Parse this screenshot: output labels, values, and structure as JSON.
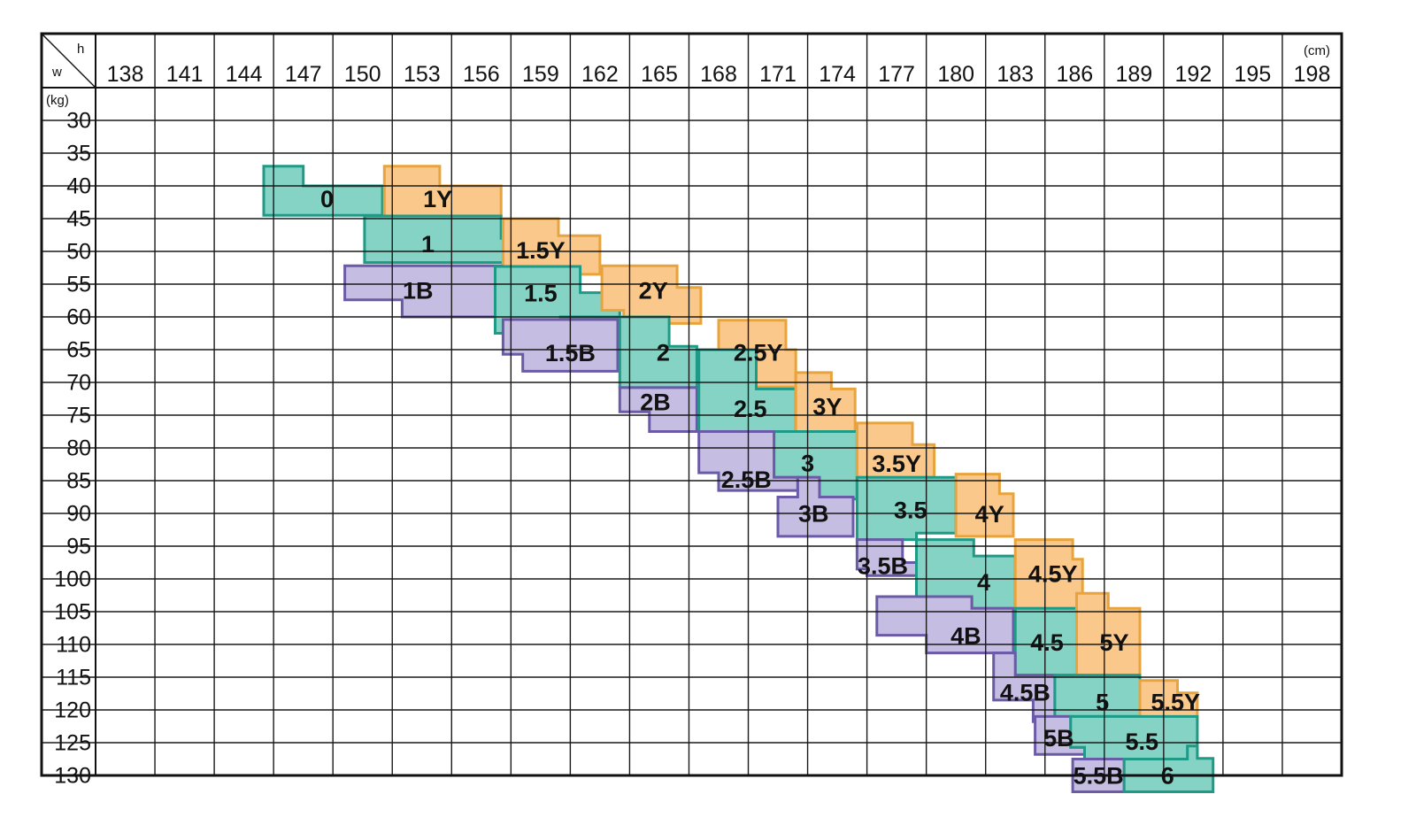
{
  "chart_data": {
    "type": "heatmap",
    "corner_h": "h",
    "corner_w": "w",
    "x_unit": "(cm)",
    "y_unit": "(kg)",
    "x_ticks": [
      138,
      141,
      144,
      147,
      150,
      153,
      156,
      159,
      162,
      165,
      168,
      171,
      174,
      177,
      180,
      183,
      186,
      189,
      192,
      195,
      198
    ],
    "y_ticks": [
      30,
      35,
      40,
      45,
      50,
      55,
      60,
      65,
      70,
      75,
      80,
      85,
      90,
      95,
      100,
      105,
      110,
      115,
      120,
      125,
      130
    ],
    "colors": {
      "Y": "#f9c88a",
      "Y_stroke": "#e8a33c",
      "M": "#84d3c4",
      "M_stroke": "#1e9a86",
      "B": "#c6bde2",
      "B_stroke": "#6b5aa6"
    },
    "regions": [
      {
        "label": "0",
        "type": "M",
        "poly": [
          [
            143.5,
            37
          ],
          [
            145.5,
            37
          ],
          [
            145.5,
            40
          ],
          [
            149.5,
            40
          ],
          [
            149.5,
            44.5
          ],
          [
            143.5,
            44.5
          ]
        ],
        "label_at": [
          146.7,
          42.3
        ]
      },
      {
        "label": "1Y",
        "type": "Y",
        "poly": [
          [
            149.6,
            37
          ],
          [
            152.4,
            37
          ],
          [
            152.4,
            40
          ],
          [
            155.5,
            40
          ],
          [
            155.5,
            44.6
          ],
          [
            149.6,
            44.6
          ]
        ],
        "label_at": [
          152.3,
          42.3
        ]
      },
      {
        "label": "1",
        "type": "M",
        "poly": [
          [
            148.6,
            44.6
          ],
          [
            155.5,
            44.6
          ],
          [
            155.5,
            48
          ],
          [
            155.7,
            48
          ],
          [
            155.7,
            51.7
          ],
          [
            148.6,
            51.7
          ]
        ],
        "label_at": [
          151.8,
          49.2
        ]
      },
      {
        "label": "1.5Y",
        "type": "Y",
        "poly": [
          [
            155.6,
            45
          ],
          [
            158.4,
            45
          ],
          [
            158.4,
            47.6
          ],
          [
            160.5,
            47.6
          ],
          [
            160.5,
            53.5
          ],
          [
            155.6,
            53.5
          ]
        ],
        "label_at": [
          157.5,
          50.1
        ]
      },
      {
        "label": "1B",
        "type": "B",
        "poly": [
          [
            147.6,
            52.2
          ],
          [
            155.5,
            52.2
          ],
          [
            155.5,
            60
          ],
          [
            150.5,
            60
          ],
          [
            150.5,
            57.4
          ],
          [
            147.6,
            57.4
          ]
        ],
        "label_at": [
          151.3,
          56.3
        ]
      },
      {
        "label": "1.5",
        "type": "M",
        "poly": [
          [
            155.2,
            52.3
          ],
          [
            159.5,
            52.3
          ],
          [
            159.5,
            56.3
          ],
          [
            161.5,
            56.3
          ],
          [
            161.5,
            60
          ],
          [
            158.5,
            60
          ],
          [
            158.5,
            62.5
          ],
          [
            155.2,
            62.5
          ]
        ],
        "label_at": [
          157.5,
          56.7
        ]
      },
      {
        "label": "2Y",
        "type": "Y",
        "poly": [
          [
            160.6,
            52.2
          ],
          [
            164.4,
            52.2
          ],
          [
            164.4,
            55.5
          ],
          [
            165.6,
            55.5
          ],
          [
            165.6,
            61
          ],
          [
            161.7,
            61
          ],
          [
            161.7,
            59
          ],
          [
            160.6,
            59
          ]
        ],
        "label_at": [
          163.2,
          56.3
        ]
      },
      {
        "label": "1.5B",
        "type": "B",
        "poly": [
          [
            155.6,
            60.4
          ],
          [
            161.4,
            60.4
          ],
          [
            161.4,
            68.3
          ],
          [
            156.6,
            68.3
          ],
          [
            156.6,
            65.7
          ],
          [
            155.6,
            65.7
          ]
        ],
        "label_at": [
          159,
          65.8
        ]
      },
      {
        "label": "2",
        "type": "M",
        "poly": [
          [
            161.5,
            60
          ],
          [
            164,
            60
          ],
          [
            164,
            64.5
          ],
          [
            165.4,
            64.5
          ],
          [
            165.4,
            70.8
          ],
          [
            161.5,
            70.8
          ]
        ],
        "label_at": [
          163.7,
          65.7
        ]
      },
      {
        "label": "2.5Y",
        "type": "Y",
        "poly": [
          [
            166.5,
            60.5
          ],
          [
            169.9,
            60.5
          ],
          [
            169.9,
            65
          ],
          [
            170.4,
            65
          ],
          [
            170.4,
            70.7
          ],
          [
            166.5,
            70.7
          ]
        ],
        "label_at": [
          168.5,
          65.7
        ]
      },
      {
        "label": "2B",
        "type": "B",
        "poly": [
          [
            161.5,
            70.8
          ],
          [
            165.4,
            70.8
          ],
          [
            165.4,
            77.5
          ],
          [
            163,
            77.5
          ],
          [
            163,
            74.5
          ],
          [
            161.5,
            74.5
          ]
        ],
        "label_at": [
          163.3,
          73.3
        ]
      },
      {
        "label": "2.5",
        "type": "M",
        "poly": [
          [
            165.5,
            65
          ],
          [
            168.4,
            65
          ],
          [
            168.4,
            71
          ],
          [
            170.4,
            71
          ],
          [
            170.4,
            77.5
          ],
          [
            165.5,
            77.5
          ]
        ],
        "label_at": [
          168.1,
          74.3
        ]
      },
      {
        "label": "3Y",
        "type": "Y",
        "poly": [
          [
            170.4,
            68.5
          ],
          [
            172.2,
            68.5
          ],
          [
            172.2,
            71
          ],
          [
            173.4,
            71
          ],
          [
            173.4,
            77.5
          ],
          [
            170.4,
            77.5
          ]
        ],
        "label_at": [
          172,
          74
        ]
      },
      {
        "label": "3",
        "type": "M",
        "poly": [
          [
            167.5,
            77.5
          ],
          [
            173.5,
            77.5
          ],
          [
            173.5,
            87.8
          ],
          [
            171.4,
            87.8
          ],
          [
            171.4,
            84.5
          ],
          [
            167.5,
            84.5
          ]
        ],
        "label_at": [
          171,
          82.6
        ]
      },
      {
        "label": "3.5Y",
        "type": "Y",
        "poly": [
          [
            173.5,
            76.2
          ],
          [
            176.3,
            76.2
          ],
          [
            176.3,
            79.5
          ],
          [
            177.4,
            79.5
          ],
          [
            177.4,
            84.5
          ],
          [
            173.5,
            84.5
          ]
        ],
        "label_at": [
          175.5,
          82.7
        ]
      },
      {
        "label": "2.5B",
        "type": "B",
        "poly": [
          [
            165.5,
            77.5
          ],
          [
            169.3,
            77.5
          ],
          [
            169.3,
            84.5
          ],
          [
            170.5,
            84.5
          ],
          [
            170.5,
            86.5
          ],
          [
            166.5,
            86.5
          ],
          [
            166.5,
            83.8
          ],
          [
            165.5,
            83.8
          ]
        ],
        "label_at": [
          167.9,
          85.1
        ]
      },
      {
        "label": "3B",
        "type": "B",
        "poly": [
          [
            170.5,
            84.5
          ],
          [
            171.6,
            84.5
          ],
          [
            171.6,
            87.5
          ],
          [
            173.3,
            87.5
          ],
          [
            173.3,
            93.5
          ],
          [
            169.5,
            93.5
          ],
          [
            169.5,
            87.5
          ],
          [
            170.5,
            87.5
          ]
        ],
        "label_at": [
          171.3,
          90.3
        ]
      },
      {
        "label": "3.5",
        "type": "M",
        "poly": [
          [
            173.5,
            84.5
          ],
          [
            178.5,
            84.5
          ],
          [
            178.5,
            93
          ],
          [
            176.5,
            93
          ],
          [
            176.5,
            94
          ],
          [
            173.5,
            94
          ]
        ],
        "label_at": [
          176.2,
          89.8
        ]
      },
      {
        "label": "4Y",
        "type": "Y",
        "poly": [
          [
            178.5,
            84
          ],
          [
            180.7,
            84
          ],
          [
            180.7,
            87
          ],
          [
            181.4,
            87
          ],
          [
            181.4,
            93.5
          ],
          [
            178.5,
            93.5
          ]
        ],
        "label_at": [
          180.2,
          90.4
        ]
      },
      {
        "label": "3.5B",
        "type": "B",
        "poly": [
          [
            173.5,
            94
          ],
          [
            175.8,
            94
          ],
          [
            175.8,
            97.5
          ],
          [
            176.5,
            97.5
          ],
          [
            176.5,
            99.5
          ],
          [
            174,
            99.5
          ],
          [
            174,
            98.5
          ],
          [
            173.5,
            98.5
          ]
        ],
        "label_at": [
          174.8,
          98.3
        ]
      },
      {
        "label": "4",
        "type": "M",
        "poly": [
          [
            176.5,
            94
          ],
          [
            179.4,
            94
          ],
          [
            179.4,
            96.5
          ],
          [
            181.5,
            96.5
          ],
          [
            181.5,
            104.5
          ],
          [
            179.3,
            104.5
          ],
          [
            179.3,
            102.7
          ],
          [
            176.5,
            102.7
          ]
        ],
        "label_at": [
          179.9,
          100.8
        ]
      },
      {
        "label": "4.5Y",
        "type": "Y",
        "poly": [
          [
            181.5,
            94
          ],
          [
            184.4,
            94
          ],
          [
            184.4,
            97
          ],
          [
            184.9,
            97
          ],
          [
            184.9,
            104.5
          ],
          [
            181.5,
            104.5
          ]
        ],
        "label_at": [
          183.4,
          99.5
        ]
      },
      {
        "label": "4B",
        "type": "B",
        "poly": [
          [
            174.5,
            102.7
          ],
          [
            179.3,
            102.7
          ],
          [
            179.3,
            104.5
          ],
          [
            181.4,
            104.5
          ],
          [
            181.4,
            111.3
          ],
          [
            177,
            111.3
          ],
          [
            177,
            108.6
          ],
          [
            174.5,
            108.6
          ]
        ],
        "label_at": [
          179,
          109
        ]
      },
      {
        "label": "4.5",
        "type": "M",
        "poly": [
          [
            181.5,
            104.5
          ],
          [
            184.6,
            104.5
          ],
          [
            184.6,
            114.7
          ],
          [
            181.5,
            114.7
          ]
        ],
        "label_at": [
          183.1,
          110
        ]
      },
      {
        "label": "5Y",
        "type": "Y",
        "poly": [
          [
            184.6,
            102.2
          ],
          [
            186.2,
            102.2
          ],
          [
            186.2,
            104.5
          ],
          [
            187.8,
            104.5
          ],
          [
            187.8,
            114.7
          ],
          [
            184.6,
            114.7
          ]
        ],
        "label_at": [
          186.5,
          110
        ]
      },
      {
        "label": "4.5B",
        "type": "B",
        "poly": [
          [
            180.4,
            111.3
          ],
          [
            181.5,
            111.3
          ],
          [
            181.5,
            114.7
          ],
          [
            183.5,
            114.7
          ],
          [
            183.5,
            121.8
          ],
          [
            182.4,
            121.8
          ],
          [
            182.4,
            118.5
          ],
          [
            180.4,
            118.5
          ]
        ],
        "label_at": [
          182,
          117.6
        ]
      },
      {
        "label": "5",
        "type": "M",
        "poly": [
          [
            183.5,
            114.7
          ],
          [
            187.8,
            114.7
          ],
          [
            187.8,
            121
          ],
          [
            183.5,
            121
          ]
        ],
        "label_at": [
          185.9,
          119.1
        ]
      },
      {
        "label": "5.5Y",
        "type": "Y",
        "poly": [
          [
            187.8,
            115.5
          ],
          [
            189.7,
            115.5
          ],
          [
            189.7,
            117.4
          ],
          [
            190.7,
            117.4
          ],
          [
            190.7,
            122
          ],
          [
            187.8,
            122
          ]
        ],
        "label_at": [
          189.6,
          119.1
        ]
      },
      {
        "label": "5B",
        "type": "B",
        "poly": [
          [
            182.5,
            121
          ],
          [
            184.3,
            121
          ],
          [
            184.3,
            125.7
          ],
          [
            185,
            125.7
          ],
          [
            185,
            126.8
          ],
          [
            182.5,
            126.8
          ]
        ],
        "label_at": [
          183.7,
          124.6
        ]
      },
      {
        "label": "5.5",
        "type": "M",
        "poly": [
          [
            184.3,
            121
          ],
          [
            190.7,
            121
          ],
          [
            190.7,
            127.5
          ],
          [
            185,
            127.5
          ],
          [
            185,
            125.7
          ],
          [
            184.3,
            125.7
          ]
        ],
        "label_at": [
          187.9,
          125.1
        ]
      },
      {
        "label": "5.5B",
        "type": "B",
        "poly": [
          [
            184.4,
            127.5
          ],
          [
            187,
            127.5
          ],
          [
            187,
            132.5
          ],
          [
            184.4,
            132.5
          ]
        ],
        "label_at": [
          185.7,
          130.3
        ]
      },
      {
        "label": "6",
        "type": "M",
        "poly": [
          [
            187,
            127.5
          ],
          [
            190.2,
            127.5
          ],
          [
            190.2,
            125.5
          ],
          [
            190.7,
            125.5
          ],
          [
            190.7,
            127.4
          ],
          [
            191.5,
            127.4
          ],
          [
            191.5,
            132.5
          ],
          [
            187,
            132.5
          ]
        ],
        "label_at": [
          189.2,
          130.3
        ]
      }
    ]
  }
}
